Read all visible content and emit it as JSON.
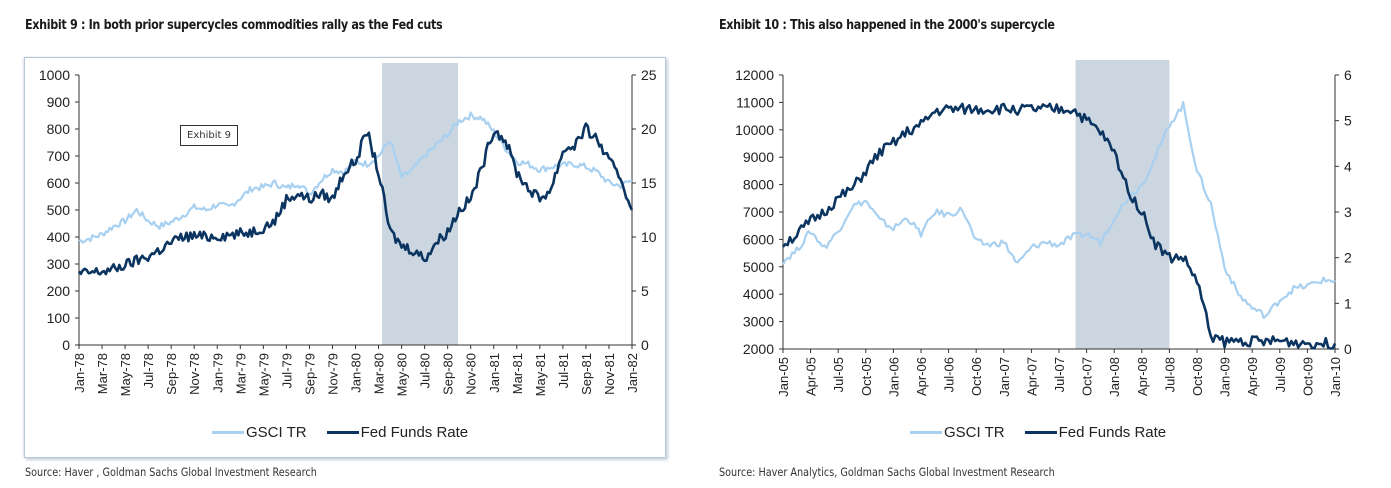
{
  "colors": {
    "gsci": "#a8d0f0",
    "fed": "#0b3560",
    "shade": "#cbd6e1",
    "axis": "#333333"
  },
  "chart_data": [
    {
      "type": "line",
      "title": "Exhibit 9 : In both prior supercycles commodities rally as the Fed cuts",
      "source": "Source: Haver , Goldman Sachs Global Investment Research",
      "annotation": "Exhibit 9",
      "xlabel": "",
      "ylabel_left": "",
      "ylabel_right": "",
      "x_ticks": [
        "Jan-78",
        "Mar-78",
        "May-78",
        "Jul-78",
        "Sep-78",
        "Nov-78",
        "Jan-79",
        "Mar-79",
        "May-79",
        "Jul-79",
        "Sep-79",
        "Nov-79",
        "Jan-80",
        "Mar-80",
        "May-80",
        "Jul-80",
        "Sep-80",
        "Nov-80",
        "Jan-81",
        "Mar-81",
        "May-81",
        "Jul-81",
        "Sep-81",
        "Nov-81",
        "Jan-82"
      ],
      "ylim_left": [
        0,
        1000
      ],
      "yticks_left": [
        0,
        100,
        200,
        300,
        400,
        500,
        600,
        700,
        800,
        900,
        1000
      ],
      "ylim_right": [
        0,
        25
      ],
      "yticks_right": [
        0,
        5,
        10,
        15,
        20,
        25
      ],
      "shaded_region": {
        "start": "Mar-80",
        "end": "Oct-80"
      },
      "legend": [
        "GSCI TR",
        "Fed Funds Rate"
      ],
      "legend_position": "bottom",
      "series": [
        {
          "name": "GSCI TR",
          "axis": "left",
          "x": [
            0,
            0.5,
            1,
            1.5,
            2,
            2.5,
            3,
            3.5,
            4,
            4.5,
            5,
            5.5,
            6,
            6.5,
            7,
            7.5,
            8,
            8.5,
            9,
            9.5,
            10,
            10.5,
            11,
            11.5,
            12,
            12.5,
            13,
            13.5,
            14,
            14.5,
            15,
            15.5,
            16,
            16.5,
            17,
            17.5,
            18,
            18.5,
            19,
            19.5,
            20,
            20.5,
            21,
            21.5,
            22,
            22.5,
            23,
            23.5,
            24
          ],
          "values": [
            385,
            395,
            410,
            440,
            460,
            500,
            460,
            440,
            455,
            480,
            510,
            500,
            520,
            510,
            545,
            580,
            585,
            600,
            580,
            600,
            560,
            610,
            650,
            640,
            680,
            670,
            700,
            760,
            620,
            650,
            700,
            740,
            780,
            830,
            850,
            840,
            790,
            730,
            680,
            670,
            650,
            660,
            665,
            670,
            660,
            640,
            600,
            590,
            610
          ]
        },
        {
          "name": "Fed Funds Rate",
          "axis": "right",
          "x": [
            0,
            0.5,
            1,
            1.5,
            2,
            2.5,
            3,
            3.5,
            4,
            4.5,
            5,
            5.5,
            6,
            6.5,
            7,
            7.5,
            8,
            8.5,
            9,
            9.5,
            10,
            10.5,
            11,
            11.5,
            12,
            12.5,
            13,
            13.5,
            14,
            14.5,
            15,
            15.5,
            16,
            16.5,
            17,
            17.5,
            18,
            18.5,
            19,
            19.5,
            20,
            20.5,
            21,
            21.5,
            22,
            22.5,
            23,
            23.5,
            24
          ],
          "values": [
            6.6,
            6.7,
            6.8,
            7.0,
            7.4,
            7.8,
            8.2,
            8.8,
            9.5,
            10.0,
            10.1,
            10.0,
            10.1,
            10.2,
            10.3,
            10.5,
            10.9,
            11.5,
            13.5,
            14.0,
            13.5,
            14.0,
            13.5,
            16.0,
            17.0,
            19.8,
            16.0,
            10.5,
            9.2,
            8.8,
            8.0,
            9.5,
            10.5,
            12.5,
            13.5,
            16.5,
            20.0,
            19.0,
            16.0,
            14.5,
            13.5,
            14.5,
            18.0,
            18.5,
            20.0,
            19.0,
            17.0,
            15.5,
            12.5
          ]
        }
      ]
    },
    {
      "type": "line",
      "title": "Exhibit 10 : This also happened in the 2000's supercycle",
      "source": "Source: Haver Analytics, Goldman Sachs Global Investment Research",
      "xlabel": "",
      "ylabel_left": "",
      "ylabel_right": "",
      "x_ticks": [
        "Jan-05",
        "Apr-05",
        "Jul-05",
        "Oct-05",
        "Jan-06",
        "Apr-06",
        "Jul-06",
        "Oct-06",
        "Jan-07",
        "Apr-07",
        "Jul-07",
        "Oct-07",
        "Jan-08",
        "Apr-08",
        "Jul-08",
        "Oct-08",
        "Jan-09",
        "Apr-09",
        "Jul-09",
        "Oct-09",
        "Jan-10"
      ],
      "ylim_left": [
        2000,
        12000
      ],
      "yticks_left": [
        2000,
        3000,
        4000,
        5000,
        6000,
        7000,
        8000,
        9000,
        10000,
        11000,
        12000
      ],
      "ylim_right": [
        0,
        6
      ],
      "yticks_right": [
        0,
        1,
        2,
        3,
        4,
        5,
        6
      ],
      "shaded_region": {
        "start": "Aug-07",
        "end": "Jul-08"
      },
      "legend": [
        "GSCI TR",
        "Fed Funds Rate"
      ],
      "legend_position": "bottom",
      "series": [
        {
          "name": "GSCI TR",
          "axis": "left",
          "x": [
            0,
            0.5,
            1,
            1.5,
            2,
            2.5,
            3,
            3.5,
            4,
            4.5,
            5,
            5.5,
            6,
            6.5,
            7,
            7.5,
            8,
            8.5,
            9,
            9.5,
            10,
            10.5,
            11,
            11.5,
            12,
            12.5,
            13,
            13.5,
            14,
            14.5,
            15,
            15.5,
            16,
            16.5,
            17,
            17.5,
            18,
            18.5,
            19,
            19.5,
            20
          ],
          "values": [
            5200,
            5600,
            6300,
            5700,
            6300,
            7200,
            7400,
            6700,
            6400,
            6800,
            6200,
            7000,
            6900,
            7100,
            5900,
            5800,
            5900,
            5100,
            5700,
            5900,
            5800,
            6100,
            6200,
            5900,
            6800,
            7500,
            8000,
            9000,
            10200,
            10900,
            8500,
            7300,
            5000,
            4000,
            3500,
            3200,
            3800,
            4200,
            4300,
            4500,
            4500
          ]
        },
        {
          "name": "Fed Funds Rate",
          "axis": "right",
          "x": [
            0,
            0.5,
            1,
            1.5,
            2,
            2.5,
            3,
            3.5,
            4,
            4.5,
            5,
            5.5,
            6,
            6.5,
            7,
            7.5,
            8,
            8.5,
            9,
            9.5,
            10,
            10.5,
            11,
            11.5,
            12,
            12.5,
            13,
            13.5,
            14,
            14.5,
            15,
            15.5,
            16,
            16.5,
            17,
            17.5,
            18,
            18.5,
            19,
            19.5,
            20
          ],
          "values": [
            2.3,
            2.5,
            2.8,
            3.0,
            3.3,
            3.5,
            3.9,
            4.3,
            4.5,
            4.75,
            4.9,
            5.2,
            5.25,
            5.25,
            5.25,
            5.25,
            5.26,
            5.25,
            5.25,
            5.25,
            5.25,
            5.25,
            5.0,
            4.75,
            4.3,
            3.5,
            3.0,
            2.3,
            2.0,
            2.0,
            1.5,
            0.3,
            0.15,
            0.18,
            0.18,
            0.15,
            0.18,
            0.15,
            0.13,
            0.12,
            0.12
          ]
        }
      ]
    }
  ]
}
